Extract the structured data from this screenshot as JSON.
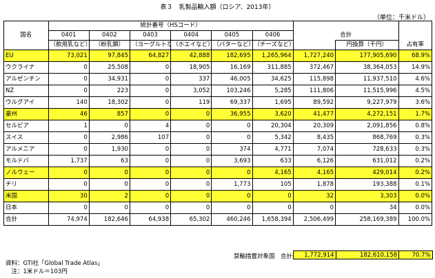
{
  "title": "表３　乳製品輸入額（ロシア、2013年）",
  "unit": "（単位：千米ドル）",
  "header": {
    "country": "国名",
    "stats_code": "統計番号（HSコード）",
    "total": "合計",
    "yen": "円換算（千円）",
    "share": "占有率",
    "codes": [
      {
        "code": "0401",
        "desc": "（飲用乳など）"
      },
      {
        "code": "0402",
        "desc": "（粉乳類）"
      },
      {
        "code": "0403",
        "desc": "（ヨーグルトなど）"
      },
      {
        "code": "0404",
        "desc": "（ホエイなど）"
      },
      {
        "code": "0405",
        "desc": "（バターなど）"
      },
      {
        "code": "0406",
        "desc": "（チーズなど）"
      }
    ]
  },
  "rows": [
    {
      "name": "EU",
      "v": [
        "73,021",
        "97,845",
        "64,827",
        "42,888",
        "182,695",
        "1,265,964"
      ],
      "total": "1,727,240",
      "yen": "177,905,690",
      "share": "68.9%",
      "hl": true
    },
    {
      "name": "ウクライナ",
      "v": [
        "0",
        "25,508",
        "0",
        "18,905",
        "16,169",
        "311,885"
      ],
      "total": "372,467",
      "yen": "38,364,053",
      "share": "14.9%",
      "hl": false
    },
    {
      "name": "アルゼンチン",
      "v": [
        "0",
        "34,931",
        "0",
        "337",
        "46,005",
        "34,625"
      ],
      "total": "115,898",
      "yen": "11,937,510",
      "share": "4.6%",
      "hl": false
    },
    {
      "name": "NZ",
      "v": [
        "0",
        "223",
        "0",
        "3,052",
        "103,246",
        "5,285"
      ],
      "total": "111,806",
      "yen": "11,515,996",
      "share": "4.5%",
      "hl": false
    },
    {
      "name": "ウルグアイ",
      "v": [
        "140",
        "18,302",
        "0",
        "119",
        "69,337",
        "1,695"
      ],
      "total": "89,592",
      "yen": "9,227,979",
      "share": "3.6%",
      "hl": false
    },
    {
      "name": "豪州",
      "v": [
        "46",
        "857",
        "0",
        "0",
        "36,955",
        "3,620"
      ],
      "total": "41,477",
      "yen": "4,272,151",
      "share": "1.7%",
      "hl": true
    },
    {
      "name": "セルビア",
      "v": [
        "1",
        "0",
        "4",
        "0",
        "0",
        "20,304"
      ],
      "total": "20,309",
      "yen": "2,091,856",
      "share": "0.8%",
      "hl": false
    },
    {
      "name": "スイス",
      "v": [
        "0",
        "2,986",
        "107",
        "0",
        "0",
        "5,342"
      ],
      "total": "8,435",
      "yen": "868,769",
      "share": "0.3%",
      "hl": false
    },
    {
      "name": "アルメニア",
      "v": [
        "0",
        "1,930",
        "0",
        "0",
        "374",
        "4,771"
      ],
      "total": "7,074",
      "yen": "728,633",
      "share": "0.3%",
      "hl": false
    },
    {
      "name": "モルドバ",
      "v": [
        "1,737",
        "63",
        "0",
        "0",
        "3,693",
        "633"
      ],
      "total": "6,126",
      "yen": "631,012",
      "share": "0.2%",
      "hl": false
    },
    {
      "name": "ノルウェー",
      "v": [
        "0",
        "0",
        "0",
        "0",
        "0",
        "4,165"
      ],
      "total": "4,165",
      "yen": "429,014",
      "share": "0.2%",
      "hl": true
    },
    {
      "name": "チリ",
      "v": [
        "0",
        "0",
        "0",
        "0",
        "1,773",
        "105"
      ],
      "total": "1,878",
      "yen": "193,388",
      "share": "0.1%",
      "hl": false
    },
    {
      "name": "米国",
      "v": [
        "30",
        "2",
        "0",
        "0",
        "0",
        "0"
      ],
      "total": "32",
      "yen": "3,303",
      "share": "0.0%",
      "hl": true
    },
    {
      "name": "日本",
      "v": [
        "0",
        "0",
        "0",
        "0",
        "0",
        "0"
      ],
      "total": "0",
      "yen": "34",
      "share": "0.0%",
      "hl": false
    },
    {
      "name": "合計",
      "v": [
        "74,974",
        "182,646",
        "64,938",
        "65,302",
        "460,246",
        "1,658,394"
      ],
      "total": "2,506,499",
      "yen": "258,169,389",
      "share": "100.0%",
      "hl": false
    }
  ],
  "summary": {
    "label": "禁輸措置対象国　合計",
    "total": "1,772,914",
    "yen": "182,610,158",
    "share": "70.7%"
  },
  "notes": [
    "資料：GTI社「Global Trade Atlas」",
    "　注：1米ドル＝103円"
  ]
}
